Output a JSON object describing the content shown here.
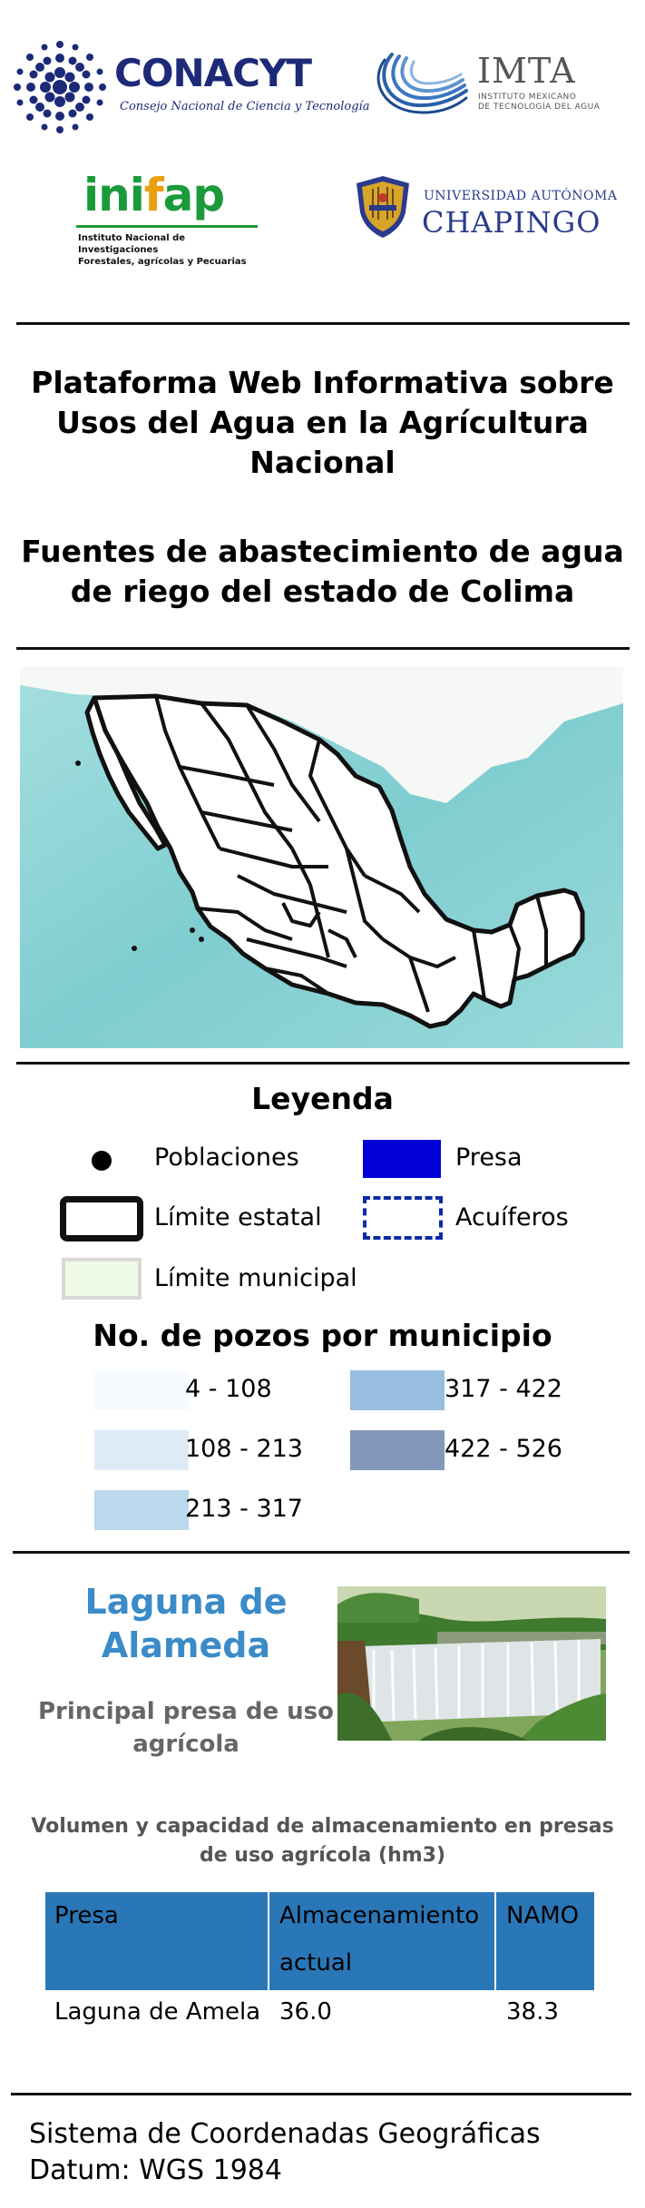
{
  "logos": {
    "conacyt": {
      "name": "CONACYT",
      "subtitle": "Consejo Nacional de Ciencia y Tecnología"
    },
    "imta": {
      "name": "IMTA",
      "subtitle_line1": "INSTITUTO MEXICANO",
      "subtitle_line2": "DE TECNOLOGÍA DEL AGUA"
    },
    "inifap": {
      "name_a": "ini",
      "name_f": "f",
      "name_b": "ap",
      "subtitle_line1": "Instituto Nacional de Investigaciones",
      "subtitle_line2": "Forestales, agrícolas y Pecuarias"
    },
    "chapingo": {
      "line1": "UNIVERSIDAD AUTÓNOMA",
      "line2": "CHAPINGO"
    }
  },
  "title": {
    "platform_line1": "Plataforma Web Informativa sobre",
    "platform_line2": "Usos del Agua en la Agrícultura",
    "platform_line3": "Nacional",
    "map_line1": "Fuentes de abastecimiento de agua",
    "map_line2": "de riego del estado de Colima"
  },
  "legend": {
    "title": "Leyenda",
    "poblaciones": "Poblaciones",
    "presa": "Presa",
    "limite_estatal": "Límite estatal",
    "acuiferos": "Acuíferos",
    "limite_municipal": "Límite municipal",
    "pozos_title": "No. de pozos por municipio",
    "classes": [
      {
        "label": "4 - 108",
        "color": "#f7fbff"
      },
      {
        "label": "108 - 213",
        "color": "#deebf7"
      },
      {
        "label": "213 - 317",
        "color": "#bcd8ec"
      },
      {
        "label": "317 - 422",
        "color": "#97bde0"
      },
      {
        "label": "422 - 526",
        "color": "#8597b8"
      }
    ],
    "colors": {
      "presa": "#0000d6",
      "acuiferos": "#0a2aa8",
      "limite_municipal": "#eef9e6"
    }
  },
  "feature": {
    "name_line1": "Laguna de",
    "name_line2": "Alameda",
    "description_line1": "Principal presa de uso",
    "description_line2": "agrícola"
  },
  "table": {
    "caption_line1": "Volumen y capacidad de almacenamiento en presas",
    "caption_line2": "de uso agrícola (hm3)",
    "headers": {
      "presa": "Presa",
      "almac_line1": "Almacenamiento",
      "almac_line2": "actual",
      "namo": "NAMO"
    },
    "rows": [
      {
        "presa": "Laguna de Amela",
        "almacenamiento": "36.0",
        "namo": "38.3"
      }
    ]
  },
  "footer": {
    "line1": "Sistema de Coordenadas Geográficas",
    "line2": "Datum: WGS 1984"
  },
  "map": {
    "sea_color": "#8fd4d6",
    "land_color": "#ffffff",
    "border_color": "#111111"
  }
}
